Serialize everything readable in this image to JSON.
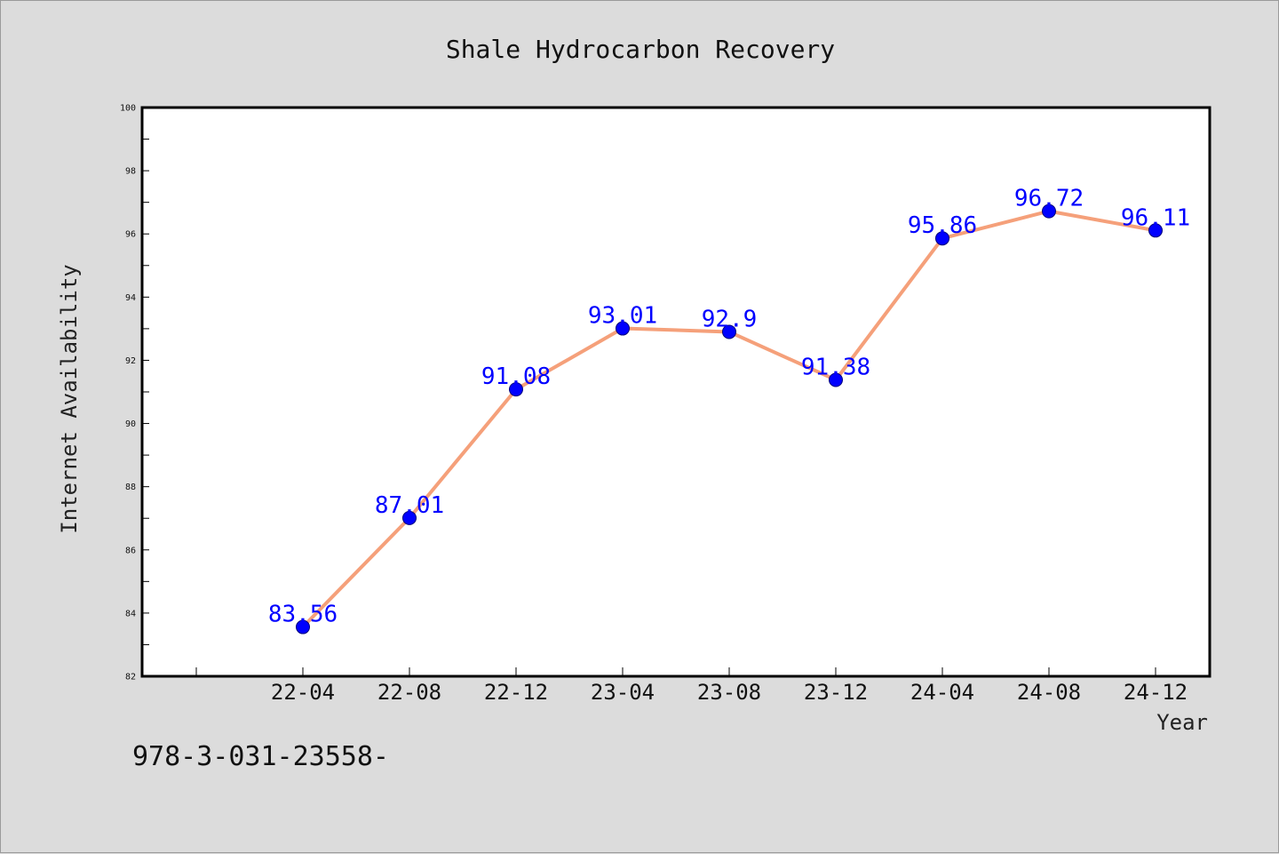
{
  "chart_data": {
    "type": "line",
    "title": "Shale Hydrocarbon Recovery",
    "xlabel": "Year",
    "ylabel": "Internet Availability",
    "categories": [
      "22-04",
      "22-08",
      "22-12",
      "23-04",
      "23-08",
      "23-12",
      "24-04",
      "24-08",
      "24-12"
    ],
    "series": [
      {
        "values": [
          83.56,
          87.01,
          91.08,
          93.01,
          92.9,
          91.38,
          95.86,
          96.72,
          96.11
        ],
        "line_color": "#f5a07a",
        "marker_color": "#0000ff"
      }
    ],
    "ylim": [
      82,
      100
    ],
    "yticks": [
      82,
      84,
      86,
      88,
      90,
      92,
      94,
      96,
      98,
      100
    ],
    "grid": false,
    "legend": "none",
    "data_labels": true
  },
  "footnote": "978-3-031-23558-"
}
